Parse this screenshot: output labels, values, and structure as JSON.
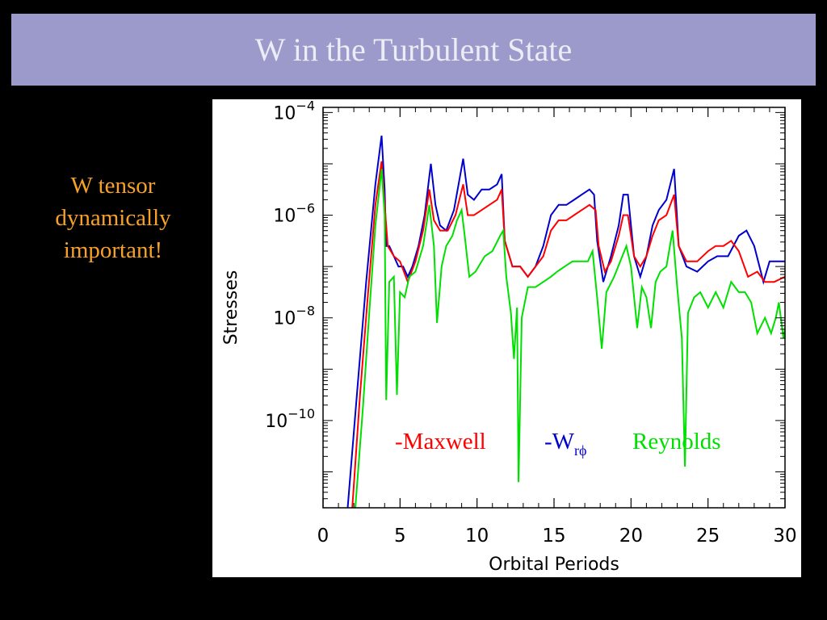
{
  "slide": {
    "title": "W in the Turbulent State",
    "note_lines": [
      "W tensor",
      "dynamically",
      "important!"
    ]
  },
  "colors": {
    "maxwell": "#ff0000",
    "w_rphi": "#0000cc",
    "reynolds": "#00e000",
    "title_bar": "#9b9acb",
    "note": "#f7a128"
  },
  "chart_data": {
    "type": "line",
    "xlabel": "Orbital Periods",
    "ylabel": "Stresses",
    "xlim": [
      0,
      30
    ],
    "ylim_log10": [
      -11.7,
      -3.9
    ],
    "yscale": "log",
    "x_ticks": [
      0,
      5,
      10,
      15,
      20,
      25,
      30
    ],
    "y_ticks": [
      {
        "base": "10",
        "exp": "−4",
        "log": -4
      },
      {
        "base": "10",
        "exp": "−6",
        "log": -6
      },
      {
        "base": "10",
        "exp": "−8",
        "log": -8
      },
      {
        "base": "10",
        "exp": "−10",
        "log": -10
      }
    ],
    "labels": {
      "maxwell": "-Maxwell",
      "w_prefix": "-W",
      "w_sub": "rϕ",
      "reynolds": "Reynolds"
    },
    "series": [
      {
        "key": "w_rphi",
        "points": [
          [
            1.6,
            -11.7
          ],
          [
            2.2,
            -9.5
          ],
          [
            2.8,
            -7.3
          ],
          [
            3.4,
            -5.4
          ],
          [
            3.8,
            -4.45
          ],
          [
            4.0,
            -5.5
          ],
          [
            4.1,
            -6.6
          ],
          [
            4.3,
            -6.6
          ],
          [
            4.6,
            -6.8
          ],
          [
            4.9,
            -7.0
          ],
          [
            5.2,
            -7.0
          ],
          [
            5.5,
            -7.2
          ],
          [
            5.8,
            -7.0
          ],
          [
            6.2,
            -6.6
          ],
          [
            6.6,
            -6.0
          ],
          [
            7.0,
            -5.0
          ],
          [
            7.3,
            -5.8
          ],
          [
            7.6,
            -6.2
          ],
          [
            8.0,
            -6.3
          ],
          [
            8.5,
            -5.9
          ],
          [
            9.1,
            -4.9
          ],
          [
            9.4,
            -5.6
          ],
          [
            9.8,
            -5.7
          ],
          [
            10.3,
            -5.5
          ],
          [
            10.8,
            -5.5
          ],
          [
            11.3,
            -5.4
          ],
          [
            11.6,
            -5.2
          ],
          [
            11.8,
            -6.5
          ],
          [
            12.3,
            -7.0
          ],
          [
            12.8,
            -7.0
          ],
          [
            13.3,
            -7.2
          ],
          [
            13.8,
            -7.0
          ],
          [
            14.3,
            -6.6
          ],
          [
            14.8,
            -6.0
          ],
          [
            15.3,
            -5.8
          ],
          [
            15.8,
            -5.8
          ],
          [
            16.3,
            -5.7
          ],
          [
            16.8,
            -5.6
          ],
          [
            17.3,
            -5.5
          ],
          [
            17.6,
            -5.6
          ],
          [
            17.8,
            -6.5
          ],
          [
            18.2,
            -7.3
          ],
          [
            18.7,
            -6.8
          ],
          [
            19.2,
            -6.2
          ],
          [
            19.5,
            -5.6
          ],
          [
            19.8,
            -5.6
          ],
          [
            20.2,
            -6.8
          ],
          [
            20.6,
            -7.2
          ],
          [
            21.0,
            -6.8
          ],
          [
            21.4,
            -6.2
          ],
          [
            21.8,
            -5.9
          ],
          [
            22.3,
            -5.7
          ],
          [
            22.8,
            -5.1
          ],
          [
            23.1,
            -6.6
          ],
          [
            23.6,
            -7.0
          ],
          [
            24.3,
            -7.1
          ],
          [
            25.0,
            -6.9
          ],
          [
            25.6,
            -6.8
          ],
          [
            26.3,
            -6.8
          ],
          [
            27.0,
            -6.4
          ],
          [
            27.5,
            -6.3
          ],
          [
            28.0,
            -6.6
          ],
          [
            28.6,
            -7.3
          ],
          [
            29.0,
            -6.9
          ],
          [
            29.5,
            -6.9
          ],
          [
            30.0,
            -6.9
          ]
        ]
      },
      {
        "key": "maxwell",
        "points": [
          [
            1.9,
            -11.7
          ],
          [
            2.4,
            -9.5
          ],
          [
            2.9,
            -7.6
          ],
          [
            3.4,
            -5.8
          ],
          [
            3.8,
            -4.95
          ],
          [
            4.0,
            -5.8
          ],
          [
            4.2,
            -6.6
          ],
          [
            4.6,
            -6.8
          ],
          [
            5.0,
            -6.9
          ],
          [
            5.5,
            -7.3
          ],
          [
            6.0,
            -6.9
          ],
          [
            6.5,
            -6.3
          ],
          [
            6.9,
            -5.5
          ],
          [
            7.2,
            -6.1
          ],
          [
            7.6,
            -6.3
          ],
          [
            8.1,
            -6.3
          ],
          [
            8.6,
            -6.0
          ],
          [
            9.1,
            -5.4
          ],
          [
            9.4,
            -6.0
          ],
          [
            9.8,
            -6.0
          ],
          [
            10.3,
            -5.9
          ],
          [
            10.8,
            -5.8
          ],
          [
            11.3,
            -5.7
          ],
          [
            11.6,
            -5.5
          ],
          [
            11.8,
            -6.5
          ],
          [
            12.3,
            -7.0
          ],
          [
            12.8,
            -7.0
          ],
          [
            13.3,
            -7.2
          ],
          [
            13.8,
            -7.0
          ],
          [
            14.3,
            -6.8
          ],
          [
            14.8,
            -6.3
          ],
          [
            15.3,
            -6.1
          ],
          [
            15.8,
            -6.1
          ],
          [
            16.3,
            -6.0
          ],
          [
            16.8,
            -5.9
          ],
          [
            17.3,
            -5.8
          ],
          [
            17.7,
            -5.9
          ],
          [
            17.9,
            -6.6
          ],
          [
            18.3,
            -7.1
          ],
          [
            18.7,
            -6.9
          ],
          [
            19.2,
            -6.4
          ],
          [
            19.5,
            -6.0
          ],
          [
            19.8,
            -6.0
          ],
          [
            20.2,
            -6.8
          ],
          [
            20.6,
            -7.0
          ],
          [
            21.0,
            -6.8
          ],
          [
            21.4,
            -6.4
          ],
          [
            21.8,
            -6.1
          ],
          [
            22.3,
            -6.0
          ],
          [
            22.8,
            -5.6
          ],
          [
            23.1,
            -6.6
          ],
          [
            23.6,
            -6.9
          ],
          [
            24.3,
            -6.9
          ],
          [
            25.0,
            -6.7
          ],
          [
            25.5,
            -6.6
          ],
          [
            26.0,
            -6.6
          ],
          [
            26.5,
            -6.5
          ],
          [
            27.0,
            -6.7
          ],
          [
            27.6,
            -7.2
          ],
          [
            28.2,
            -7.1
          ],
          [
            28.7,
            -7.3
          ],
          [
            29.3,
            -7.3
          ],
          [
            30.0,
            -7.2
          ]
        ]
      },
      {
        "key": "reynolds",
        "points": [
          [
            2.1,
            -11.7
          ],
          [
            2.6,
            -9.7
          ],
          [
            3.0,
            -7.9
          ],
          [
            3.4,
            -6.2
          ],
          [
            3.8,
            -5.1
          ],
          [
            4.0,
            -6.0
          ],
          [
            4.1,
            -9.6
          ],
          [
            4.3,
            -7.3
          ],
          [
            4.6,
            -7.2
          ],
          [
            4.8,
            -9.5
          ],
          [
            5.0,
            -7.5
          ],
          [
            5.3,
            -7.6
          ],
          [
            5.6,
            -7.2
          ],
          [
            6.0,
            -7.1
          ],
          [
            6.5,
            -6.6
          ],
          [
            6.9,
            -5.8
          ],
          [
            7.2,
            -6.6
          ],
          [
            7.4,
            -8.1
          ],
          [
            7.7,
            -7.0
          ],
          [
            8.0,
            -6.6
          ],
          [
            8.4,
            -6.4
          ],
          [
            8.7,
            -6.1
          ],
          [
            9.0,
            -5.9
          ],
          [
            9.2,
            -6.4
          ],
          [
            9.5,
            -7.2
          ],
          [
            9.9,
            -7.1
          ],
          [
            10.5,
            -6.8
          ],
          [
            11.0,
            -6.7
          ],
          [
            11.5,
            -6.4
          ],
          [
            11.7,
            -6.3
          ],
          [
            11.9,
            -7.2
          ],
          [
            12.2,
            -7.9
          ],
          [
            12.4,
            -8.8
          ],
          [
            12.6,
            -7.8
          ],
          [
            12.7,
            -11.2
          ],
          [
            12.9,
            -8.0
          ],
          [
            13.3,
            -7.4
          ],
          [
            13.8,
            -7.4
          ],
          [
            14.3,
            -7.3
          ],
          [
            14.8,
            -7.2
          ],
          [
            15.2,
            -7.1
          ],
          [
            15.7,
            -7.0
          ],
          [
            16.2,
            -6.9
          ],
          [
            16.7,
            -6.9
          ],
          [
            17.2,
            -6.9
          ],
          [
            17.5,
            -6.7
          ],
          [
            17.8,
            -7.6
          ],
          [
            18.1,
            -8.6
          ],
          [
            18.4,
            -7.5
          ],
          [
            18.9,
            -7.2
          ],
          [
            19.3,
            -6.9
          ],
          [
            19.7,
            -6.6
          ],
          [
            20.0,
            -7.0
          ],
          [
            20.4,
            -8.2
          ],
          [
            20.7,
            -7.4
          ],
          [
            21.0,
            -7.6
          ],
          [
            21.3,
            -8.2
          ],
          [
            21.6,
            -7.3
          ],
          [
            21.9,
            -7.1
          ],
          [
            22.3,
            -7.0
          ],
          [
            22.7,
            -6.3
          ],
          [
            23.0,
            -7.4
          ],
          [
            23.3,
            -8.4
          ],
          [
            23.5,
            -10.9
          ],
          [
            23.7,
            -7.9
          ],
          [
            24.1,
            -7.6
          ],
          [
            24.5,
            -7.5
          ],
          [
            25.0,
            -7.8
          ],
          [
            25.5,
            -7.5
          ],
          [
            26.0,
            -7.8
          ],
          [
            26.5,
            -7.3
          ],
          [
            27.0,
            -7.5
          ],
          [
            27.4,
            -7.5
          ],
          [
            27.8,
            -7.7
          ],
          [
            28.2,
            -8.3
          ],
          [
            28.7,
            -8.0
          ],
          [
            29.1,
            -8.3
          ],
          [
            29.4,
            -8.0
          ],
          [
            29.6,
            -7.7
          ],
          [
            29.9,
            -8.4
          ],
          [
            30.0,
            -8.2
          ]
        ]
      }
    ]
  }
}
